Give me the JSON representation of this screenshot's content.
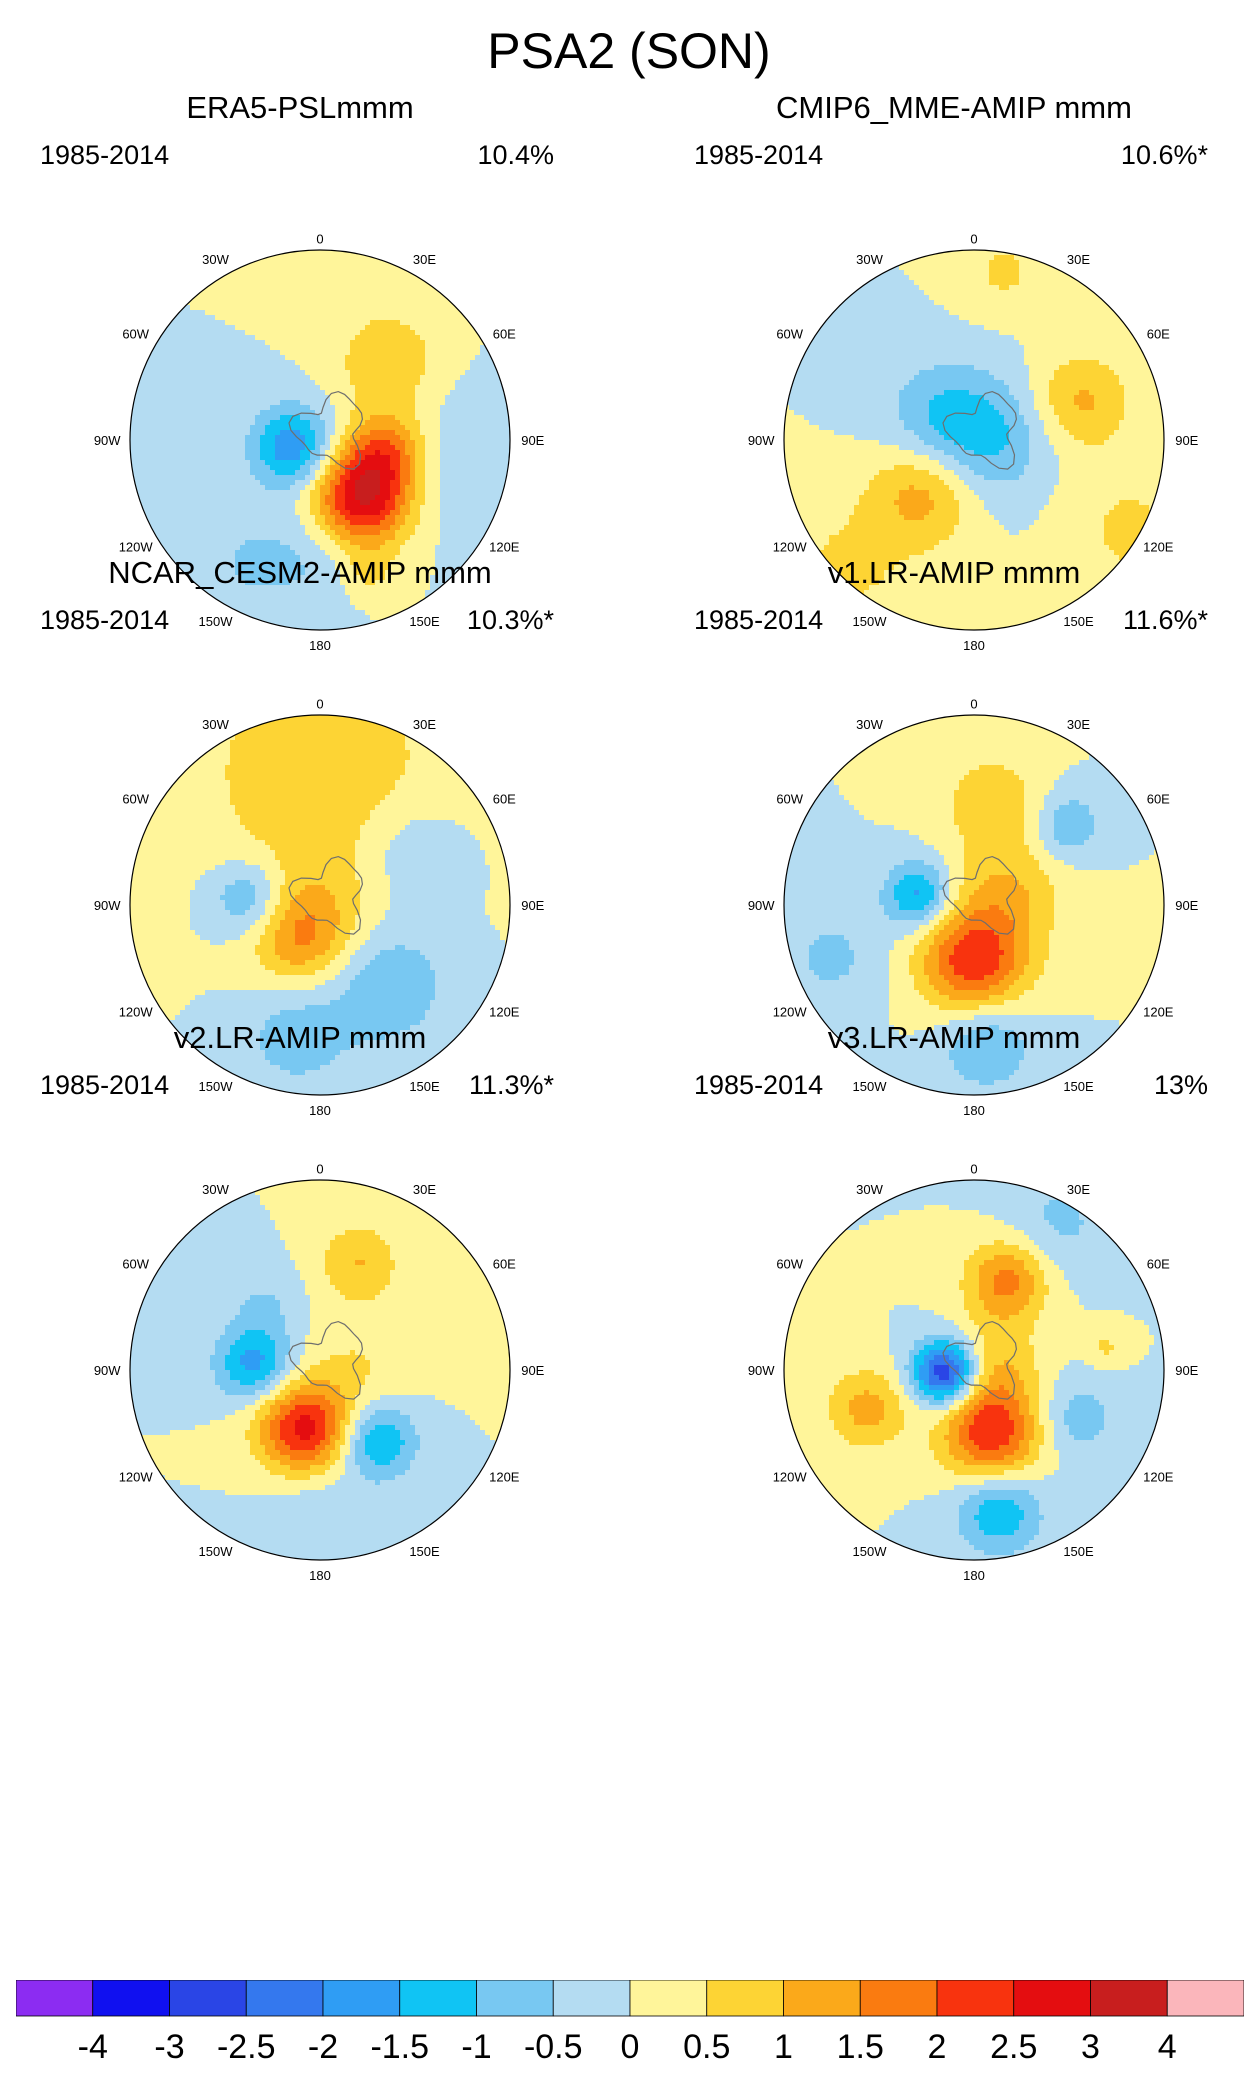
{
  "figure": {
    "title": "PSA2 (SON)"
  },
  "map_labels": {
    "top": "0",
    "bottom": "180",
    "left_upper": "30W",
    "right_upper": "30E",
    "left_mid_upper": "60W",
    "right_mid_upper": "60E",
    "left_mid": "90W",
    "right_mid": "90E",
    "left_mid_lower": "120W",
    "right_mid_lower": "120E",
    "left_lower": "150W",
    "right_lower": "150E"
  },
  "panels": [
    {
      "title": "ERA5-PSLmmm",
      "period": "1985-2014",
      "variance": "10.4%",
      "anomalies": [
        {
          "lon": 145,
          "r": 0.38,
          "amp": 3.0,
          "s": 0.18
        },
        {
          "lon": 100,
          "r": 0.35,
          "amp": 1.6,
          "s": 0.15
        },
        {
          "lon": 40,
          "r": 0.55,
          "amp": 1.0,
          "s": 0.18
        },
        {
          "lon": 160,
          "r": 0.75,
          "amp": 0.6,
          "s": 0.1
        },
        {
          "lon": 255,
          "r": 0.15,
          "amp": -1.9,
          "s": 0.15
        },
        {
          "lon": 100,
          "r": 0.8,
          "amp": -0.5,
          "s": 0.25
        },
        {
          "lon": 210,
          "r": 0.75,
          "amp": -0.5,
          "s": 0.2
        },
        {
          "lon": 180,
          "r": 0.6,
          "amp": -0.5,
          "s": 0.2
        }
      ]
    },
    {
      "title": "CMIP6_MME-AMIP  mmm",
      "period": "1985-2014",
      "variance": "10.6%*",
      "anomalies": [
        {
          "lon": 225,
          "r": 0.38,
          "amp": 1.3,
          "s": 0.2
        },
        {
          "lon": 70,
          "r": 0.6,
          "amp": 1.1,
          "s": 0.18
        },
        {
          "lon": 300,
          "r": 0.2,
          "amp": -1.0,
          "s": 0.22
        },
        {
          "lon": 90,
          "r": 0.1,
          "amp": -0.9,
          "s": 0.22
        },
        {
          "lon": 120,
          "r": 0.95,
          "amp": 0.6,
          "s": 0.25
        },
        {
          "lon": 225,
          "r": 0.95,
          "amp": 0.6,
          "s": 0.25
        },
        {
          "lon": 10,
          "r": 0.9,
          "amp": 0.6,
          "s": 0.15
        }
      ]
    },
    {
      "title": "NCAR_CESM2-AMIP  mmm",
      "period": "1985-2014",
      "variance": "10.3%*",
      "anomalies": [
        {
          "lon": 210,
          "r": 0.2,
          "amp": 1.3,
          "s": 0.18
        },
        {
          "lon": 90,
          "r": 0.0,
          "amp": 0.4,
          "s": 0.25
        },
        {
          "lon": 275,
          "r": 0.38,
          "amp": -1.2,
          "s": 0.14
        },
        {
          "lon": 140,
          "r": 0.55,
          "amp": -1.0,
          "s": 0.22
        },
        {
          "lon": 0,
          "r": 0.7,
          "amp": 0.9,
          "s": 0.45
        },
        {
          "lon": 60,
          "r": 0.55,
          "amp": -0.6,
          "s": 0.2
        },
        {
          "lon": 190,
          "r": 0.7,
          "amp": -0.8,
          "s": 0.2
        }
      ]
    },
    {
      "title": "v1.LR-AMIP  mmm",
      "period": "1985-2014",
      "variance": "11.6%*",
      "anomalies": [
        {
          "lon": 180,
          "r": 0.3,
          "amp": 2.4,
          "s": 0.2
        },
        {
          "lon": 280,
          "r": 0.3,
          "amp": -1.7,
          "s": 0.12
        },
        {
          "lon": 70,
          "r": 0.2,
          "amp": 0.9,
          "s": 0.2
        },
        {
          "lon": 10,
          "r": 0.55,
          "amp": 0.9,
          "s": 0.18
        },
        {
          "lon": 50,
          "r": 0.65,
          "amp": -1.0,
          "s": 0.12
        },
        {
          "lon": 175,
          "r": 0.72,
          "amp": -1.1,
          "s": 0.18
        },
        {
          "lon": 250,
          "r": 0.8,
          "amp": -0.6,
          "s": 0.2
        }
      ]
    },
    {
      "title": "v2.LR-AMIP  mmm",
      "period": "1985-2014",
      "variance": "11.3%*",
      "anomalies": [
        {
          "lon": 195,
          "r": 0.32,
          "amp": 2.7,
          "s": 0.17
        },
        {
          "lon": 140,
          "r": 0.48,
          "amp": -1.6,
          "s": 0.14
        },
        {
          "lon": 275,
          "r": 0.35,
          "amp": -1.7,
          "s": 0.14
        },
        {
          "lon": 20,
          "r": 0.6,
          "amp": 1.0,
          "s": 0.15
        },
        {
          "lon": 320,
          "r": 0.45,
          "amp": -0.5,
          "s": 0.14
        },
        {
          "lon": 180,
          "r": 0.75,
          "amp": -0.5,
          "s": 0.2
        },
        {
          "lon": 90,
          "r": 0.2,
          "amp": 0.5,
          "s": 0.2
        }
      ]
    },
    {
      "title": "v3.LR-AMIP  mmm",
      "period": "1985-2014",
      "variance": "13%",
      "anomalies": [
        {
          "lon": 265,
          "r": 0.15,
          "amp": -3.2,
          "s": 0.12
        },
        {
          "lon": 165,
          "r": 0.35,
          "amp": 2.4,
          "s": 0.18
        },
        {
          "lon": 20,
          "r": 0.5,
          "amp": 1.7,
          "s": 0.15
        },
        {
          "lon": 250,
          "r": 0.6,
          "amp": 1.2,
          "s": 0.15
        },
        {
          "lon": 85,
          "r": 0.1,
          "amp": 0.9,
          "s": 0.18
        },
        {
          "lon": 170,
          "r": 0.75,
          "amp": -1.5,
          "s": 0.16
        },
        {
          "lon": 115,
          "r": 0.6,
          "amp": -0.8,
          "s": 0.15
        },
        {
          "lon": 80,
          "r": 0.7,
          "amp": 0.6,
          "s": 0.07
        },
        {
          "lon": 30,
          "r": 0.9,
          "amp": -0.6,
          "s": 0.2
        }
      ]
    }
  ],
  "colorbar": {
    "labels": [
      "-4",
      "-3",
      "-2.5",
      "-2",
      "-1.5",
      "-1",
      "-0.5",
      "0",
      "0.5",
      "1",
      "1.5",
      "2",
      "2.5",
      "3",
      "4"
    ],
    "thresholds": [
      -4,
      -3,
      -2.5,
      -2,
      -1.5,
      -1,
      -0.5,
      0,
      0.5,
      1,
      1.5,
      2,
      2.5,
      3,
      4
    ],
    "colors": [
      "#8c2cf2",
      "#1010f0",
      "#2a45e6",
      "#3478ee",
      "#2f9df4",
      "#10c4f4",
      "#78c8f2",
      "#b4dcf2",
      "#fff59a",
      "#fdd434",
      "#fba91a",
      "#fa7b10",
      "#f8330e",
      "#e40d10",
      "#c81e1e",
      "#fbb6bb"
    ]
  }
}
